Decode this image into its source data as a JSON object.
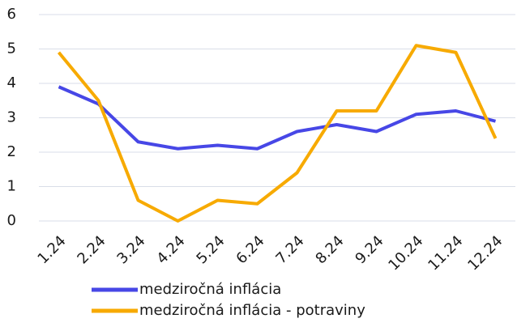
{
  "chart_data": {
    "type": "line",
    "categories": [
      "1.24",
      "2.24",
      "3.24",
      "4.24",
      "5.24",
      "6.24",
      "7.24",
      "8.24",
      "9.24",
      "10.24",
      "11.24",
      "12.24"
    ],
    "series": [
      {
        "name": "medziročná inflácia",
        "color": "#4747e6",
        "values": [
          3.9,
          3.4,
          2.3,
          2.1,
          2.2,
          2.1,
          2.6,
          2.8,
          2.6,
          3.1,
          3.2,
          2.9
        ]
      },
      {
        "name": "medziročná inflácia - potraviny",
        "color": "#f7aa00",
        "values": [
          4.9,
          3.5,
          0.6,
          0.0,
          0.6,
          0.5,
          1.4,
          3.2,
          3.2,
          5.1,
          4.9,
          2.4
        ]
      }
    ],
    "ylim": [
      0,
      6
    ],
    "yticks": [
      0,
      1,
      2,
      3,
      4,
      5,
      6
    ],
    "grid": true
  }
}
